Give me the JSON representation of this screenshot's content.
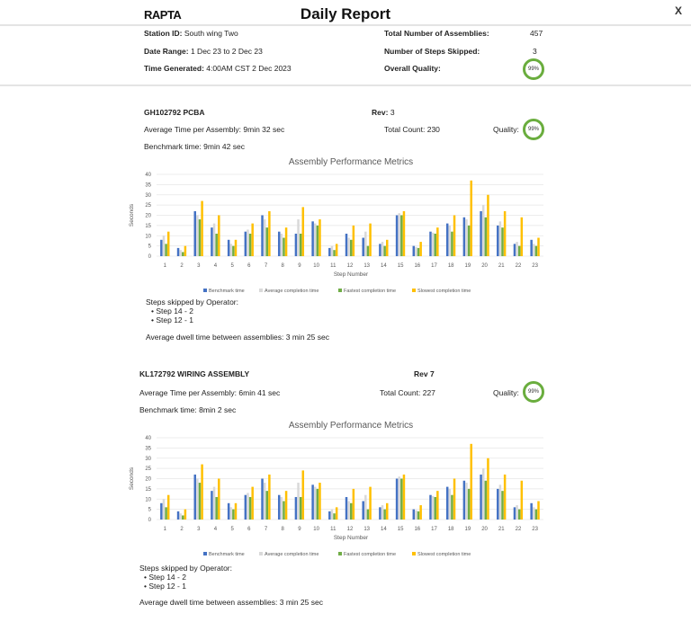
{
  "header": {
    "logo": "RAPTA",
    "title": "Daily Report",
    "close": "X"
  },
  "summary": {
    "station_label": "Station ID:",
    "station": "South wing Two",
    "date_label": "Date Range:",
    "date": "1 Dec 23 to 2 Dec 23",
    "time_label": "Time Generated:",
    "time": "4:00AM CST 2 Dec 2023",
    "assemblies_label": "Total Number of Assemblies:",
    "assemblies": "457",
    "skipped_label": "Number of Steps Skipped:",
    "skipped": "3",
    "quality_label": "Overall Quality:",
    "quality": "99%"
  },
  "sections": [
    {
      "name": "GH102792 PCBA",
      "rev_label": "Rev:",
      "rev": "3",
      "avg_time": "Average Time per Assembly: 9min 32 sec",
      "total_count": "Total Count: 230",
      "quality_label": "Quality:",
      "quality": "99%",
      "benchmark": "Benchmark time: 9min 42 sec",
      "skipped_title": "Steps skipped by Operator:",
      "skipped": [
        "Step 14 - 2",
        "Step 12 - 1"
      ],
      "dwell": "Average dwell time between assemblies: 3 min 25 sec"
    },
    {
      "name": "KL172792 WIRING ASSEMBLY",
      "rev_label": "Rev 7",
      "rev": "",
      "avg_time": "Average Time per Assembly: 6min 41 sec",
      "total_count": "Total Count: 227",
      "quality_label": "Quality:",
      "quality": "99%",
      "benchmark": "Benchmark time: 8min 2 sec",
      "skipped_title": "Steps skipped by Operator:",
      "skipped": [
        "Step 14 - 2",
        "Step 12 - 1"
      ],
      "dwell": "Average dwell time between assemblies: 3 min 25 sec"
    }
  ],
  "colors": {
    "quality_ring": "#6aad3e"
  },
  "chart_data": [
    {
      "type": "bar",
      "title": "Assembly Performance Metrics",
      "xlabel": "Step Number",
      "ylabel": "Seconds",
      "ylim": [
        0,
        40
      ],
      "yticks": [
        0,
        5,
        10,
        15,
        20,
        25,
        30,
        35,
        40
      ],
      "grid": true,
      "legend": "bottom",
      "categories": [
        "1",
        "2",
        "3",
        "4",
        "5",
        "6",
        "7",
        "8",
        "9",
        "10",
        "11",
        "12",
        "13",
        "14",
        "15",
        "16",
        "17",
        "18",
        "19",
        "20",
        "21",
        "22",
        "23"
      ],
      "series": [
        {
          "name": "Benchmark time",
          "color": "#4472c4",
          "values": [
            8,
            4,
            22,
            14,
            8,
            12,
            20,
            12,
            11,
            17,
            4,
            11,
            9,
            6,
            20,
            5,
            12,
            16,
            19,
            22,
            15,
            6,
            8
          ]
        },
        {
          "name": "Average completion time",
          "color": "#d9d9d9",
          "values": [
            10,
            3,
            20,
            16,
            6,
            13,
            18,
            11,
            18,
            16,
            5,
            9,
            12,
            7,
            21,
            4.5,
            11.5,
            15,
            18,
            25,
            17,
            7,
            6
          ]
        },
        {
          "name": "Fastest completion time",
          "color": "#70ad47",
          "values": [
            6,
            2,
            18,
            11,
            5,
            11,
            14,
            9,
            11,
            15,
            3,
            8,
            5,
            5,
            20,
            4,
            11,
            12,
            15,
            19,
            14,
            5,
            5
          ]
        },
        {
          "name": "Slowest completion time",
          "color": "#ffc000",
          "values": [
            12,
            5,
            27,
            20,
            8,
            16,
            22,
            14,
            24,
            18,
            6,
            15,
            16,
            8,
            22,
            7,
            14,
            20,
            37,
            30,
            22,
            19,
            9
          ]
        }
      ]
    },
    {
      "type": "bar",
      "title": "Assembly Performance Metrics",
      "xlabel": "Step Number",
      "ylabel": "Seconds",
      "ylim": [
        0,
        40
      ],
      "yticks": [
        0,
        5,
        10,
        15,
        20,
        25,
        30,
        35,
        40
      ],
      "grid": true,
      "legend": "bottom",
      "categories": [
        "1",
        "2",
        "3",
        "4",
        "5",
        "6",
        "7",
        "8",
        "9",
        "10",
        "11",
        "12",
        "13",
        "14",
        "15",
        "16",
        "17",
        "18",
        "19",
        "20",
        "21",
        "22",
        "23"
      ],
      "series": [
        {
          "name": "Benchmark time",
          "color": "#4472c4",
          "values": [
            8,
            4,
            22,
            14,
            8,
            12,
            20,
            12,
            11,
            17,
            4,
            11,
            9,
            6,
            20,
            5,
            12,
            16,
            19,
            22,
            15,
            6,
            8
          ]
        },
        {
          "name": "Average completion time",
          "color": "#d9d9d9",
          "values": [
            10,
            3,
            20,
            16,
            6,
            13,
            18,
            11,
            18,
            16,
            5,
            9,
            12,
            7,
            21,
            4.5,
            11.5,
            15,
            18,
            25,
            17,
            7,
            6
          ]
        },
        {
          "name": "Fastest completion time",
          "color": "#70ad47",
          "values": [
            6,
            2,
            18,
            11,
            5,
            11,
            14,
            9,
            11,
            15,
            3,
            8,
            5,
            5,
            20,
            4,
            11,
            12,
            15,
            19,
            14,
            5,
            5
          ]
        },
        {
          "name": "Slowest completion time",
          "color": "#ffc000",
          "values": [
            12,
            5,
            27,
            20,
            8,
            16,
            22,
            14,
            24,
            18,
            6,
            15,
            16,
            8,
            22,
            7,
            14,
            20,
            37,
            30,
            22,
            19,
            9
          ]
        }
      ]
    }
  ]
}
